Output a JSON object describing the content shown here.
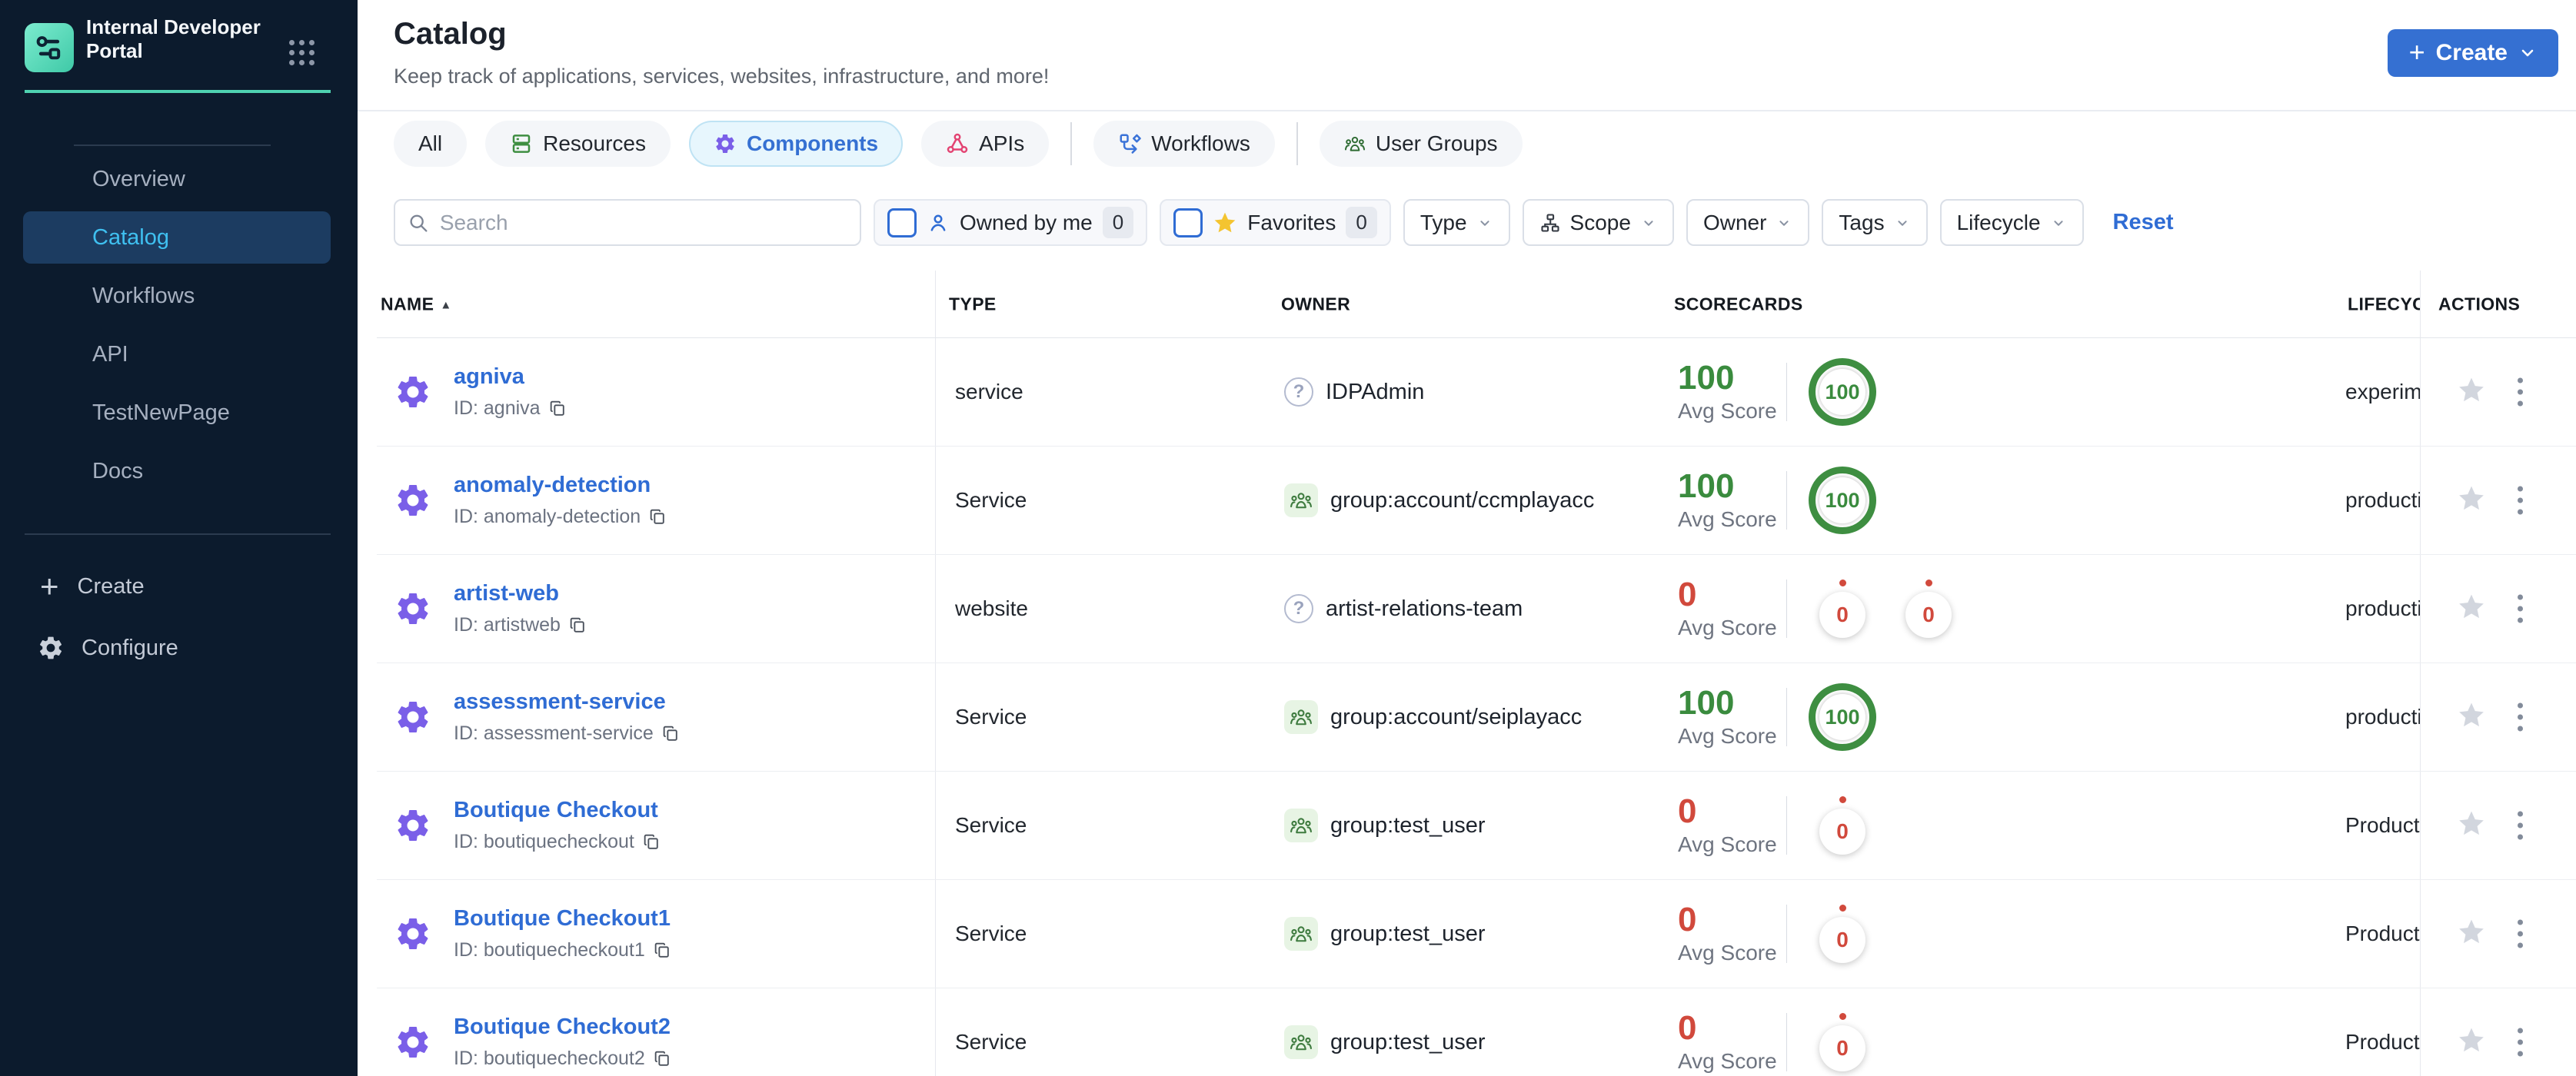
{
  "colors": {
    "accent_blue": "#3570d2",
    "link_blue": "#2f6cd4",
    "green": "#3a8b3e",
    "red": "#d1493c",
    "purple": "#7a5fe8",
    "teal": "#4fd2b1",
    "gold": "#f4c430",
    "sidebar_bg": "#0c1b2d",
    "active_item_bg": "#1c3c61",
    "active_item_text": "#3fc0f0"
  },
  "sidebar": {
    "brand_title": "Internal Developer Portal",
    "items": [
      {
        "label": "Overview",
        "active": false
      },
      {
        "label": "Catalog",
        "active": true
      },
      {
        "label": "Workflows",
        "active": false
      },
      {
        "label": "API",
        "active": false
      },
      {
        "label": "TestNewPage",
        "active": false
      },
      {
        "label": "Docs",
        "active": false
      }
    ],
    "create_label": "Create",
    "configure_label": "Configure"
  },
  "header": {
    "title": "Catalog",
    "subtitle": "Keep track of applications, services, websites, infrastructure, and more!",
    "create_button": {
      "label": "Create"
    }
  },
  "tabs": [
    {
      "label": "All",
      "active": false
    },
    {
      "label": "Resources",
      "active": false
    },
    {
      "label": "Components",
      "active": true
    },
    {
      "label": "APIs",
      "active": false
    },
    {
      "label": "Workflows",
      "active": false
    },
    {
      "label": "User Groups",
      "active": false
    }
  ],
  "filters": {
    "search_placeholder": "Search",
    "owned_by_me": {
      "label": "Owned by me",
      "count": "0"
    },
    "favorites": {
      "label": "Favorites",
      "count": "0"
    },
    "dropdowns": [
      "Type",
      "Scope",
      "Owner",
      "Tags",
      "Lifecycle"
    ],
    "reset_label": "Reset"
  },
  "table": {
    "columns": [
      "NAME",
      "TYPE",
      "OWNER",
      "SCORECARDS",
      "LIFECYCLE",
      "ACTIONS"
    ],
    "sort_arrow": "▲",
    "avg_score_label": "Avg Score",
    "rows": [
      {
        "name": "agniva",
        "id": "ID: agniva",
        "type": "service",
        "owner": {
          "icon": "question",
          "label": "IDPAdmin"
        },
        "scorecard": {
          "avg": "100",
          "status": "good",
          "gauges": [
            {
              "value": "100",
              "status": "good"
            }
          ]
        },
        "lifecycle": "experimental"
      },
      {
        "name": "anomaly-detection",
        "id": "ID: anomaly-detection",
        "type": "Service",
        "owner": {
          "icon": "group",
          "label": "group:account/ccmplayacc"
        },
        "scorecard": {
          "avg": "100",
          "status": "good",
          "gauges": [
            {
              "value": "100",
              "status": "good"
            }
          ]
        },
        "lifecycle": "production"
      },
      {
        "name": "artist-web",
        "id": "ID: artistweb",
        "type": "website",
        "owner": {
          "icon": "question",
          "label": "artist-relations-team"
        },
        "scorecard": {
          "avg": "0",
          "status": "bad",
          "gauges": [
            {
              "value": "0",
              "status": "bad"
            },
            {
              "value": "0",
              "status": "bad"
            }
          ]
        },
        "lifecycle": "production"
      },
      {
        "name": "assessment-service",
        "id": "ID: assessment-service",
        "type": "Service",
        "owner": {
          "icon": "group",
          "label": "group:account/seiplayacc"
        },
        "scorecard": {
          "avg": "100",
          "status": "good",
          "gauges": [
            {
              "value": "100",
              "status": "good"
            }
          ]
        },
        "lifecycle": "production"
      },
      {
        "name": "Boutique Checkout",
        "id": "ID: boutiquecheckout",
        "type": "Service",
        "owner": {
          "icon": "group",
          "label": "group:test_user"
        },
        "scorecard": {
          "avg": "0",
          "status": "bad",
          "gauges": [
            {
              "value": "0",
              "status": "bad"
            }
          ]
        },
        "lifecycle": "Production"
      },
      {
        "name": "Boutique Checkout1",
        "id": "ID: boutiquecheckout1",
        "type": "Service",
        "owner": {
          "icon": "group",
          "label": "group:test_user"
        },
        "scorecard": {
          "avg": "0",
          "status": "bad",
          "gauges": [
            {
              "value": "0",
              "status": "bad"
            }
          ]
        },
        "lifecycle": "Production"
      },
      {
        "name": "Boutique Checkout2",
        "id": "ID: boutiquecheckout2",
        "type": "Service",
        "owner": {
          "icon": "group",
          "label": "group:test_user"
        },
        "scorecard": {
          "avg": "0",
          "status": "bad",
          "gauges": [
            {
              "value": "0",
              "status": "bad"
            }
          ]
        },
        "lifecycle": "Production"
      }
    ]
  }
}
